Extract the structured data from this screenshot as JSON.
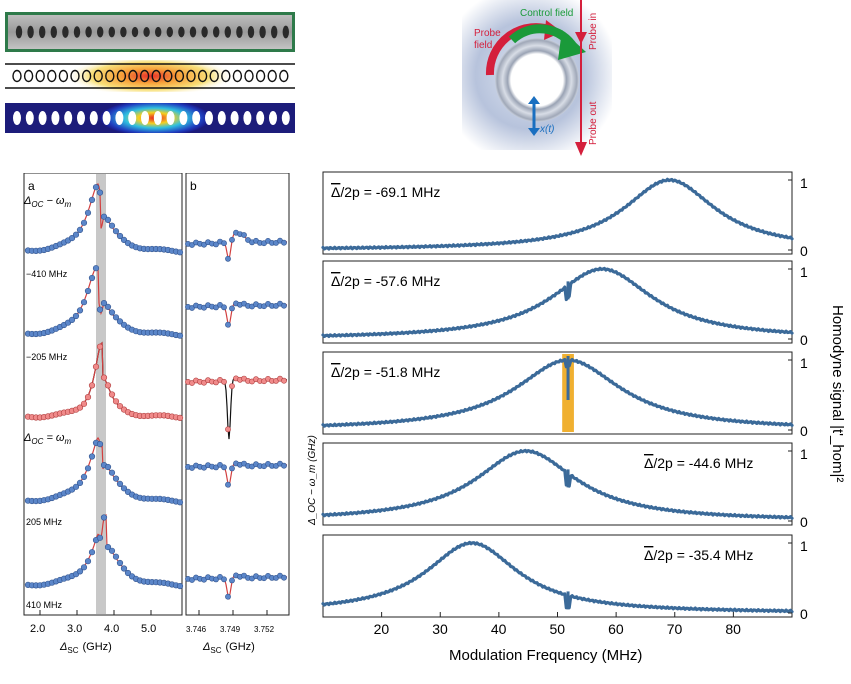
{
  "colors": {
    "trace": "#3b6a99",
    "fit_red": "#d24040",
    "dot_blue": "#5b86c9",
    "dot_red": "#f08a8a",
    "highlight": "#f0b030",
    "gray_band": "#c8c8c8",
    "probe_red": "#d41f3c",
    "control_green": "#1a9a3a"
  },
  "diagram": {
    "control_field": "Control field",
    "probe_field_line1": "Probe",
    "probe_field_line2": "field",
    "probe_in": "Probe in",
    "probe_out": "Probe out",
    "x_t": "x(t)"
  },
  "panel_a": {
    "label": "a",
    "top_label_main": "Δ",
    "top_label_sub": "OC",
    "top_label_rest": " − ω",
    "top_label_sub2": "m",
    "offsets": [
      "−410 MHz",
      "−205 MHz",
      "205 MHz",
      "410 MHz"
    ],
    "center_main": "Δ",
    "center_sub": "OC",
    "center_rest": " = ω",
    "center_sub2": "m",
    "xticks": [
      "2.0",
      "3.0",
      "4.0",
      "5.0"
    ],
    "xlabel_main": "Δ",
    "xlabel_sub": "SC",
    "xlabel_unit": "(GHz)"
  },
  "panel_b": {
    "label": "b",
    "xticks": [
      "3.746",
      "3.749",
      "3.752"
    ],
    "xlabel_main": "Δ",
    "xlabel_sub": "SC",
    "xlabel_unit": "(GHz)",
    "ylabel": "Δ_OC − ω_m (GHz)"
  },
  "chart_data": {
    "type": "line",
    "xlabel": "Modulation Frequency (MHz)",
    "ylabel": "Homodyne signal |t'_hom|²",
    "xlim": [
      10,
      90
    ],
    "xticks": [
      "20",
      "30",
      "40",
      "50",
      "60",
      "70",
      "80"
    ],
    "yticks": [
      "0",
      "1"
    ],
    "grid": false,
    "series": [
      {
        "name": "Δ̄/2p = -69.1 MHz",
        "peak_x": 69.1,
        "width": 9.5,
        "dip_x": null
      },
      {
        "name": "Δ̄/2p = -57.6 MHz",
        "peak_x": 57.6,
        "width": 10.5,
        "dip_x": 51.8
      },
      {
        "name": "Δ̄/2p = -51.8 MHz",
        "peak_x": 51.8,
        "width": 11.0,
        "dip_x": 51.8
      },
      {
        "name": "Δ̄/2p = -44.6 MHz",
        "peak_x": 44.6,
        "width": 10.5,
        "dip_x": 51.8
      },
      {
        "name": "Δ̄/2p = -35.4 MHz",
        "peak_x": 35.4,
        "width": 9.5,
        "dip_x": 51.8
      }
    ],
    "labels": [
      {
        "text_prefix": "Δ",
        "text_rest": "/2p = -69.1 MHz",
        "pos": "left"
      },
      {
        "text_prefix": "Δ",
        "text_rest": "/2p = -57.6 MHz",
        "pos": "left"
      },
      {
        "text_prefix": "Δ",
        "text_rest": "/2p = -51.8 MHz",
        "pos": "left"
      },
      {
        "text_prefix": "Δ",
        "text_rest": "/2p = -44.6 MHz",
        "pos": "right"
      },
      {
        "text_prefix": "Δ",
        "text_rest": "/2p = -35.4 MHz",
        "pos": "right"
      }
    ]
  }
}
